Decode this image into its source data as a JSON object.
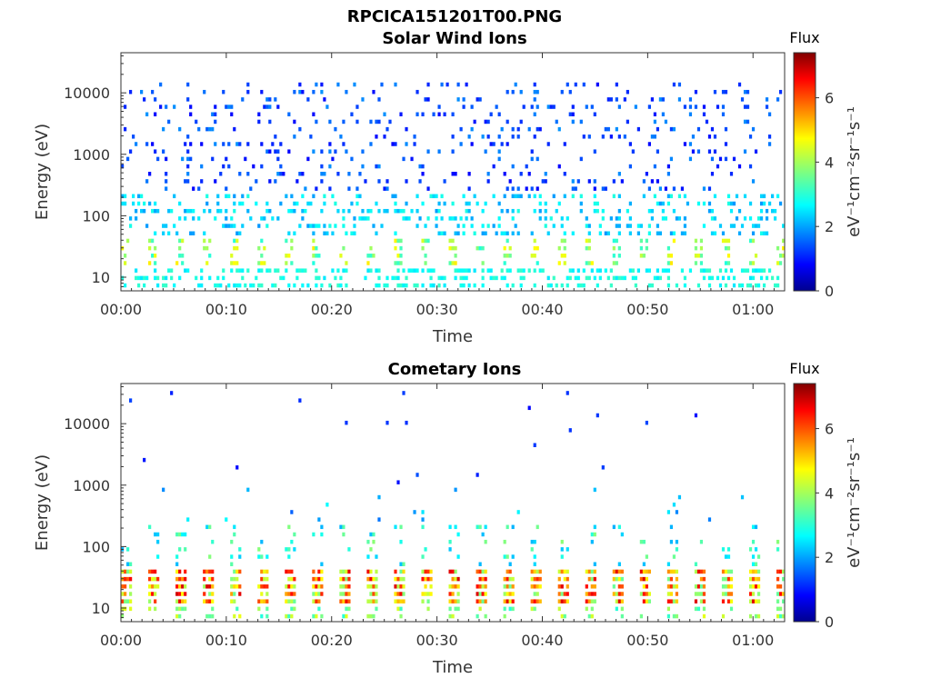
{
  "figure_title": "RPCICA151201T00.PNG",
  "chart_data": [
    {
      "type": "heatmap",
      "title": "Solar Wind Ions",
      "xlabel": "Time",
      "ylabel": "Energy (eV)",
      "y_scale": "log",
      "ylim": [
        6,
        45000
      ],
      "xlim_minutes": [
        0,
        63
      ],
      "x_ticks": [
        "00:00",
        "00:10",
        "00:20",
        "00:30",
        "00:40",
        "00:50",
        "01:00"
      ],
      "y_ticks": [
        "10",
        "100",
        "1000",
        "10000"
      ],
      "colorbar": {
        "title": "Flux",
        "label": "eV⁻¹cm⁻²sr⁻¹s⁻¹",
        "range": [
          0,
          7.4
        ],
        "ticks": [
          "0",
          "2",
          "4",
          "6"
        ],
        "colormap": "jet"
      },
      "grid": false
    },
    {
      "type": "heatmap",
      "title": "Cometary Ions",
      "xlabel": "Time",
      "ylabel": "Energy (eV)",
      "y_scale": "log",
      "ylim": [
        6,
        45000
      ],
      "xlim_minutes": [
        0,
        63
      ],
      "x_ticks": [
        "00:00",
        "00:10",
        "00:20",
        "00:30",
        "00:40",
        "00:50",
        "01:00"
      ],
      "y_ticks": [
        "10",
        "100",
        "1000",
        "10000"
      ],
      "colorbar": {
        "title": "Flux",
        "label": "eV⁻¹cm⁻²sr⁻¹s⁻¹",
        "range": [
          0,
          7.4
        ],
        "ticks": [
          "0",
          "2",
          "4",
          "6"
        ],
        "colormap": "jet"
      },
      "grid": false
    }
  ]
}
